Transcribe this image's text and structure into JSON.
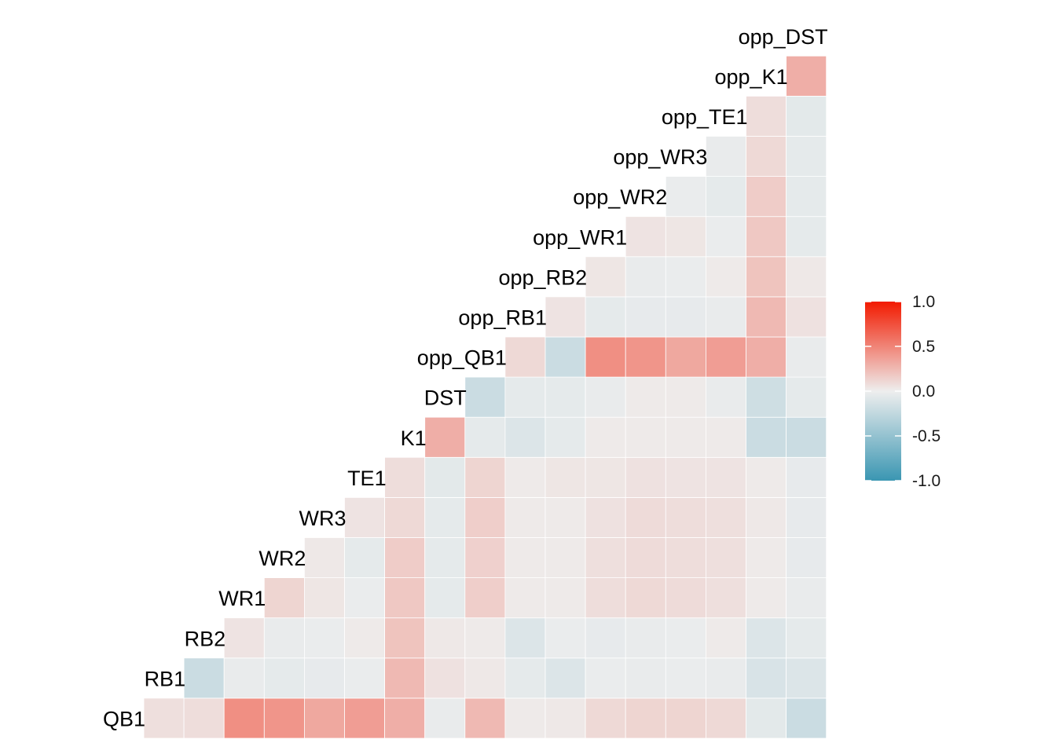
{
  "chart_data": {
    "type": "heatmap",
    "subtype": "lower-triangular correlation matrix",
    "title": "",
    "xlabel": "",
    "ylabel": "",
    "variables": [
      "QB1",
      "RB1",
      "RB2",
      "WR1",
      "WR2",
      "WR3",
      "TE1",
      "K1",
      "DST",
      "opp_QB1",
      "opp_RB1",
      "opp_RB2",
      "opp_WR1",
      "opp_WR2",
      "opp_WR3",
      "opp_TE1",
      "opp_K1",
      "opp_DST"
    ],
    "rows": [
      {
        "var": "RB1",
        "values": [
          0.07
        ]
      },
      {
        "var": "RB2",
        "values": [
          0.08,
          -0.2
        ]
      },
      {
        "var": "WR1",
        "values": [
          0.45,
          -0.03,
          0.05
        ]
      },
      {
        "var": "WR2",
        "values": [
          0.42,
          -0.05,
          -0.03,
          0.12
        ]
      },
      {
        "var": "WR3",
        "values": [
          0.33,
          -0.04,
          -0.02,
          0.04,
          0.03
        ]
      },
      {
        "var": "TE1",
        "values": [
          0.38,
          -0.02,
          0.02,
          -0.02,
          -0.05,
          0.05
        ]
      },
      {
        "var": "K1",
        "values": [
          0.3,
          0.25,
          0.2,
          0.18,
          0.16,
          0.1,
          0.08
        ]
      },
      {
        "var": "DST",
        "values": [
          -0.03,
          0.06,
          0.03,
          -0.05,
          -0.05,
          -0.05,
          -0.06,
          0.3
        ]
      },
      {
        "var": "opp_QB1",
        "values": [
          0.25,
          0.03,
          0.02,
          0.15,
          0.14,
          0.15,
          0.12,
          -0.05,
          -0.2
        ]
      },
      {
        "var": "opp_RB1",
        "values": [
          0.02,
          -0.05,
          -0.1,
          0.02,
          0.02,
          0.02,
          0.02,
          -0.1,
          -0.05,
          0.1
        ]
      },
      {
        "var": "opp_RB2",
        "values": [
          0.03,
          -0.1,
          -0.02,
          0.02,
          0.02,
          0.02,
          0.04,
          -0.05,
          -0.05,
          -0.2,
          0.05
        ]
      },
      {
        "var": "opp_WR1",
        "values": [
          0.1,
          -0.02,
          -0.04,
          0.08,
          0.07,
          0.06,
          0.04,
          0.02,
          -0.03,
          0.45,
          -0.05,
          0.04
        ]
      },
      {
        "var": "opp_WR2",
        "values": [
          0.12,
          -0.03,
          -0.03,
          0.1,
          0.09,
          0.09,
          0.06,
          0.02,
          0.02,
          0.42,
          -0.04,
          -0.03,
          0.05
        ]
      },
      {
        "var": "opp_WR3",
        "values": [
          0.12,
          -0.02,
          -0.02,
          0.09,
          0.08,
          0.08,
          0.05,
          0.02,
          0.02,
          0.33,
          -0.04,
          -0.02,
          0.04,
          -0.02
        ]
      },
      {
        "var": "opp_TE1",
        "values": [
          0.1,
          -0.03,
          0.02,
          0.07,
          0.07,
          0.07,
          0.05,
          0.02,
          -0.03,
          0.38,
          -0.03,
          0.02,
          -0.02,
          -0.05,
          -0.03
        ]
      },
      {
        "var": "opp_K1",
        "values": [
          -0.06,
          -0.12,
          -0.1,
          0.02,
          0.02,
          0.03,
          0.02,
          -0.2,
          -0.18,
          0.3,
          0.25,
          0.2,
          0.18,
          0.16,
          0.1,
          0.08
        ]
      },
      {
        "var": "opp_DST",
        "values": [
          -0.2,
          -0.1,
          -0.05,
          -0.03,
          -0.04,
          -0.04,
          -0.04,
          -0.2,
          -0.05,
          -0.03,
          0.06,
          0.03,
          -0.05,
          -0.05,
          -0.05,
          -0.06,
          0.3
        ]
      }
    ],
    "color_scale": {
      "domain": [
        -1.0,
        0.0,
        1.0
      ],
      "colors": [
        "#3A96B2",
        "#EEEEEE",
        "#F21A00"
      ],
      "ticks": [
        1.0,
        0.5,
        0.0,
        -0.5,
        -1.0
      ],
      "tick_labels": [
        "1.0",
        "0.5",
        "0.0",
        "-0.5",
        "-1.0"
      ]
    },
    "legend_position": "right"
  }
}
